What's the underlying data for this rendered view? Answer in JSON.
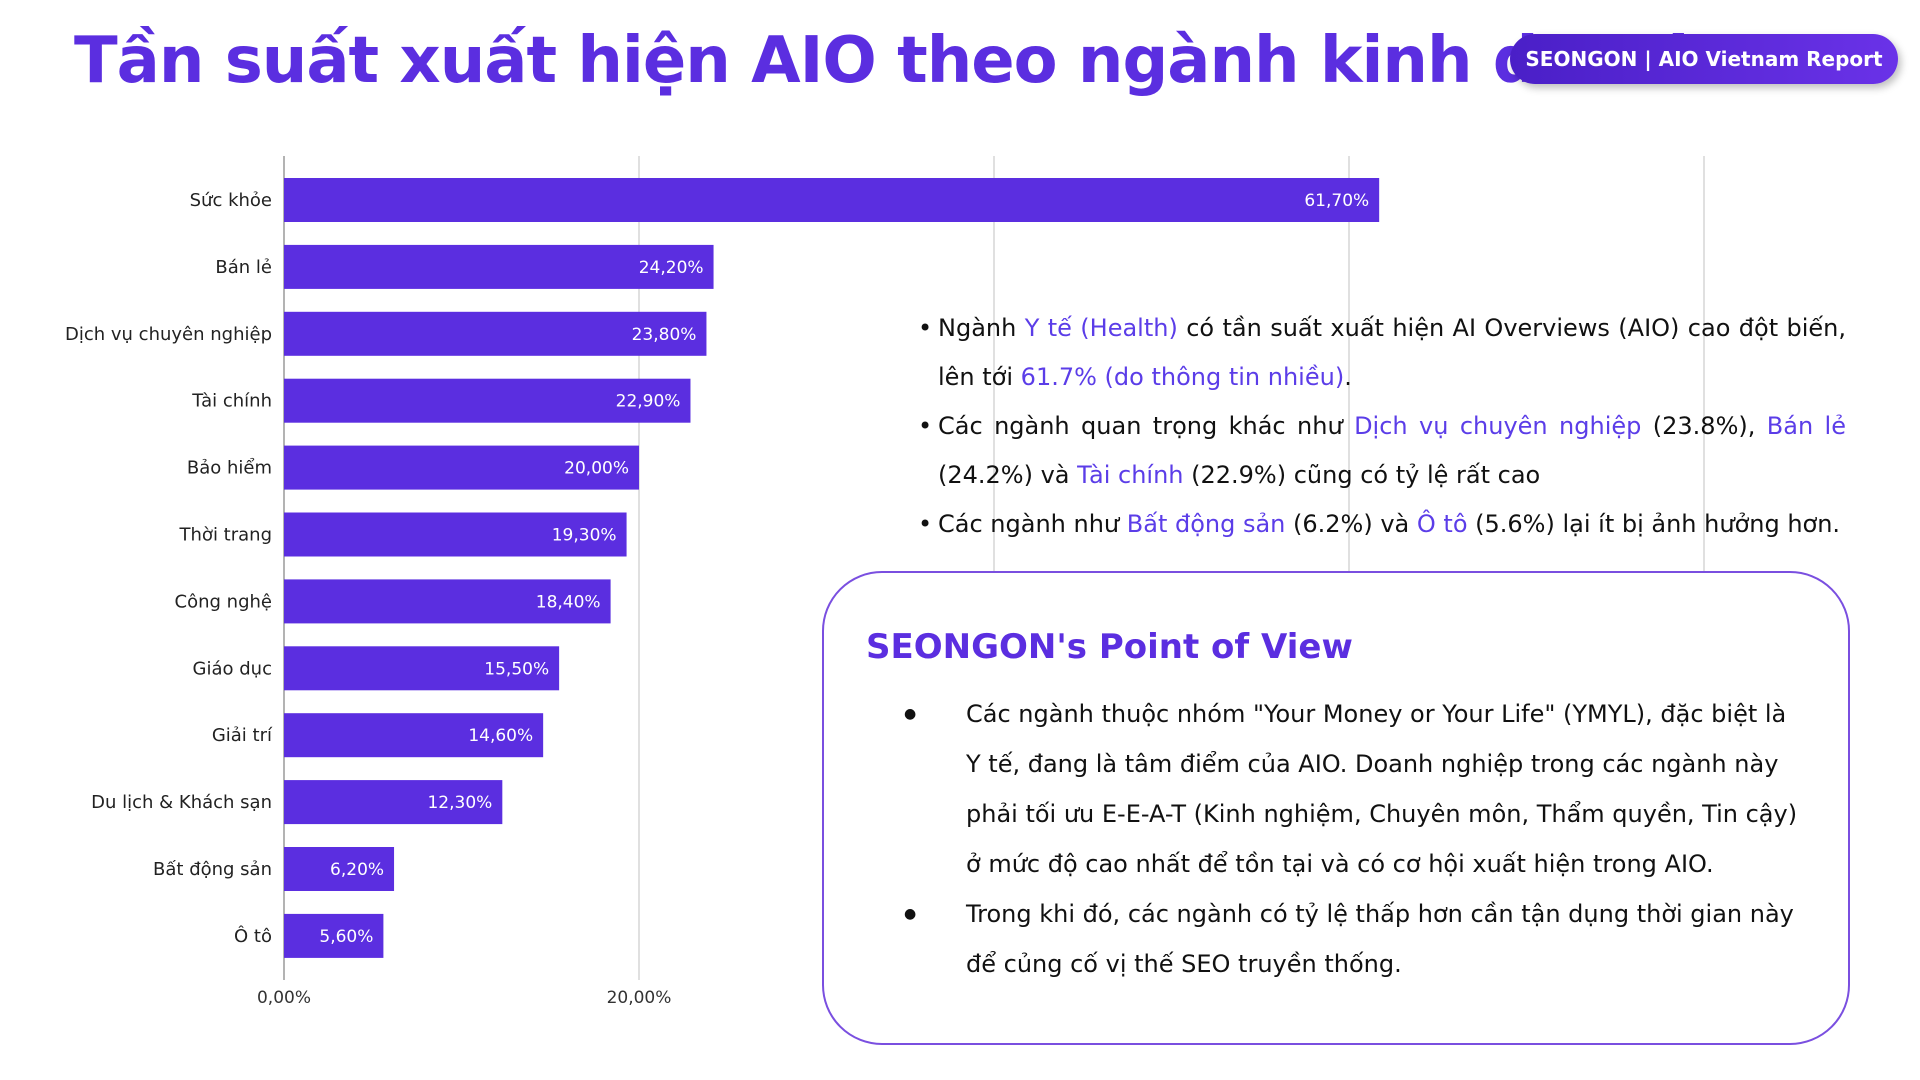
{
  "title": "Tần suất xuất hiện AIO theo ngành kinh doanh",
  "badge": "SEONGON | AIO Vietnam Report",
  "colors": {
    "bar": "#5b2ee0",
    "accent": "#5b2ee0",
    "highlight": "#5b3de8",
    "grid": "#d6d6d6"
  },
  "chart_data": {
    "type": "bar",
    "orientation": "horizontal",
    "categories": [
      "Sức khỏe",
      "Bán lẻ",
      "Dịch vụ chuyên nghiệp",
      "Tài chính",
      "Bảo hiểm",
      "Thời trang",
      "Công nghệ",
      "Giáo dục",
      "Giải trí",
      "Du lịch & Khách sạn",
      "Bất động sản",
      "Ô tô"
    ],
    "values": [
      61.7,
      24.2,
      23.8,
      22.9,
      20.0,
      19.3,
      18.4,
      15.5,
      14.6,
      12.3,
      6.2,
      5.6
    ],
    "value_labels": [
      "61,70%",
      "24,20%",
      "23,80%",
      "22,90%",
      "20,00%",
      "19,30%",
      "18,40%",
      "15,50%",
      "14,60%",
      "12,30%",
      "6,20%",
      "5,60%"
    ],
    "xlim": [
      0,
      80
    ],
    "xticks": [
      0,
      20
    ],
    "xtick_labels": [
      "0,00%",
      "20,00%"
    ],
    "grid_lines": [
      0,
      20,
      40,
      60,
      80
    ],
    "grid": true,
    "legend": "none",
    "title": "",
    "xlabel": "",
    "ylabel": ""
  },
  "insights": [
    [
      {
        "t": "Ngành "
      },
      {
        "t": "Y tế (Health)",
        "hl": true
      },
      {
        "t": " có tần suất xuất hiện AI Overviews (AIO) cao đột biến, lên tới "
      },
      {
        "t": "61.7% (do thông tin nhiều)",
        "hl": true
      },
      {
        "t": "."
      }
    ],
    [
      {
        "t": "Các ngành quan trọng khác như "
      },
      {
        "t": "Dịch vụ chuyên nghiệp",
        "hl": true
      },
      {
        "t": " (23.8%), "
      },
      {
        "t": "Bán lẻ",
        "hl": true
      },
      {
        "t": " (24.2%) và "
      },
      {
        "t": "Tài chính",
        "hl": true
      },
      {
        "t": " (22.9%) cũng có tỷ lệ rất cao"
      }
    ],
    [
      {
        "t": "Các ngành như "
      },
      {
        "t": "Bất động sản",
        "hl": true
      },
      {
        "t": " (6.2%) và "
      },
      {
        "t": "Ô tô",
        "hl": true
      },
      {
        "t": " (5.6%) lại ít bị ảnh hưởng hơn."
      }
    ]
  ],
  "pov": {
    "title": "SEONGON's Point of View",
    "bullets": [
      "Các ngành thuộc nhóm \"Your Money or Your Life\" (YMYL), đặc biệt là Y tế, đang là tâm điểm của AIO. Doanh nghiệp trong các ngành này phải tối ưu E-E-A-T (Kinh nghiệm, Chuyên môn, Thẩm quyền, Tin cậy) ở mức độ cao nhất để tồn tại và có cơ hội xuất hiện trong AIO.",
      "Trong khi đó, các ngành có tỷ lệ thấp hơn cần tận dụng thời gian này để củng cố vị thế SEO truyền thống."
    ]
  }
}
